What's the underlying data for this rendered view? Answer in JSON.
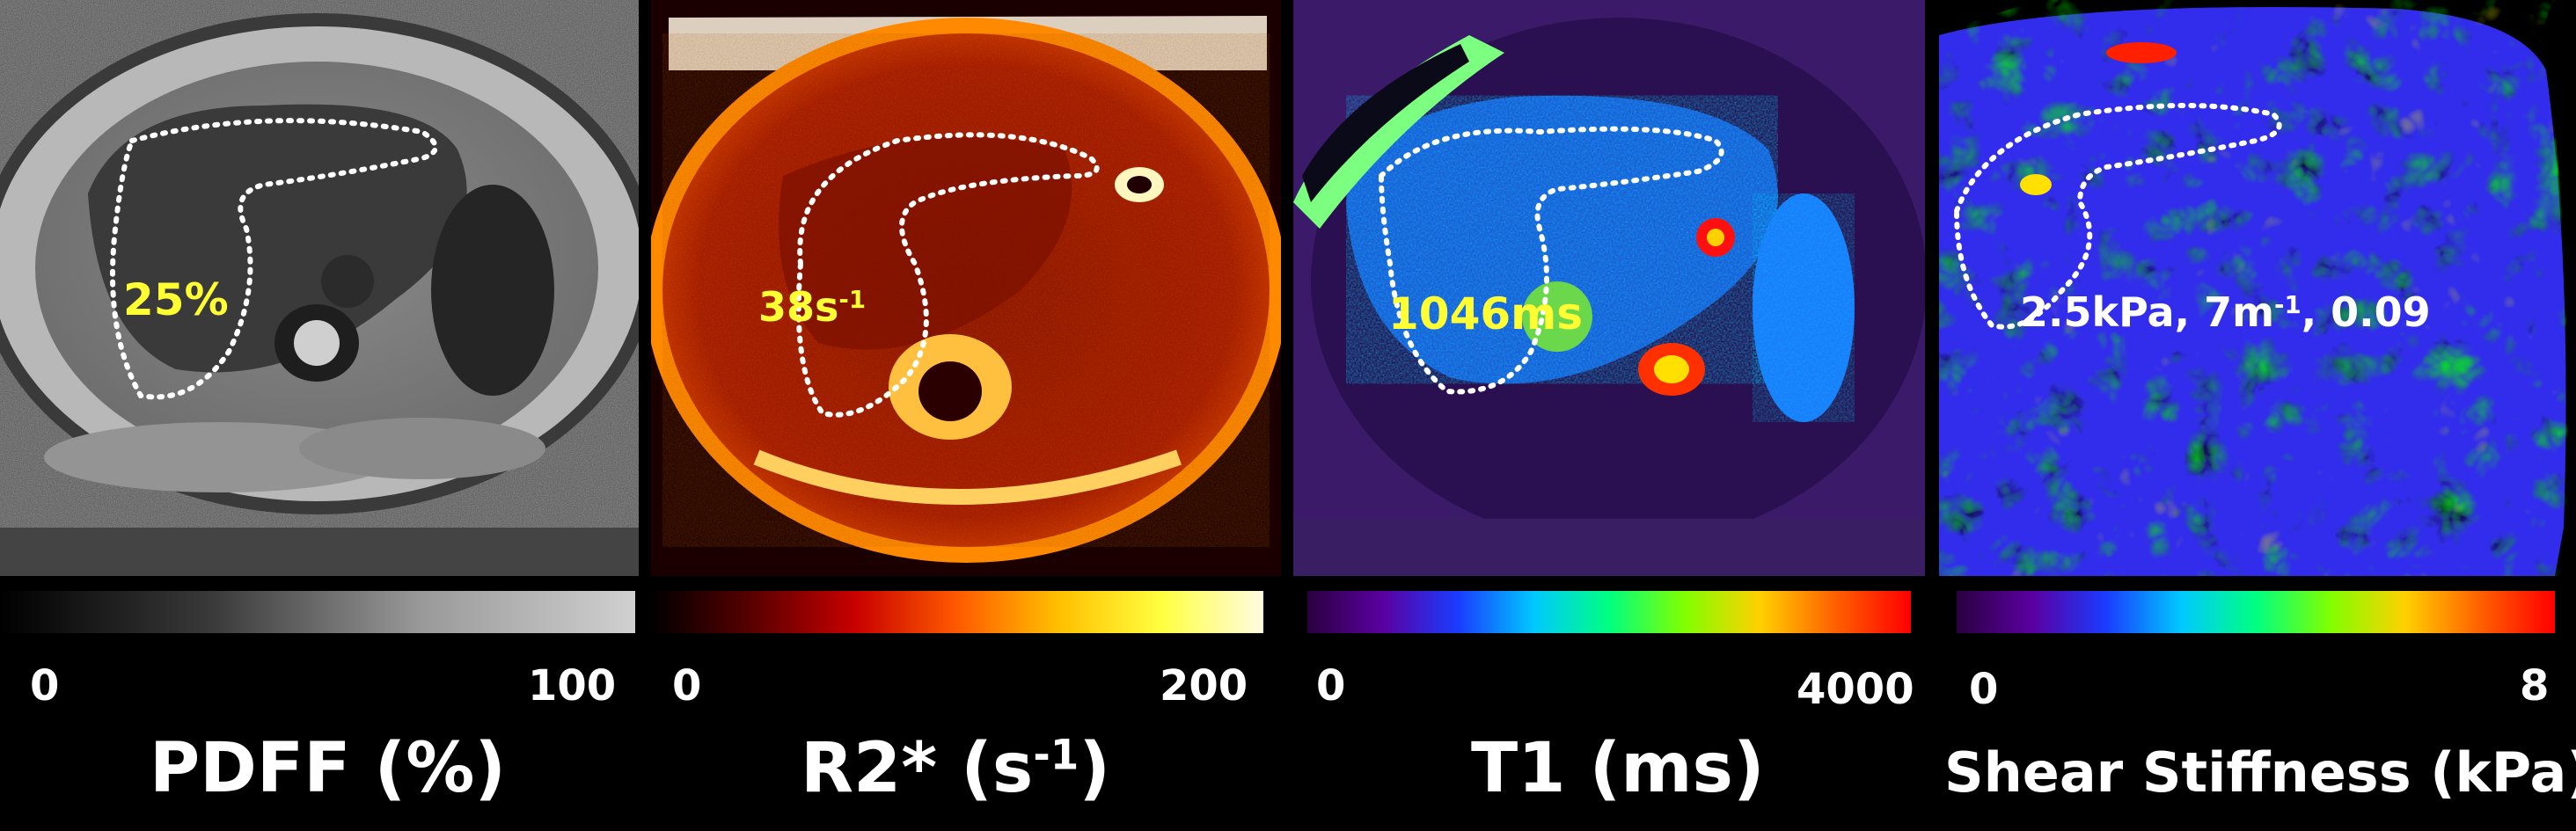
{
  "panels": [
    {
      "id": "pdff",
      "label_main": "PDFF (%)",
      "label_sup": "",
      "label_tail": "",
      "measure_main": "25%",
      "measure_sup": "",
      "measure_tail": "",
      "measure_color": "#ffff33",
      "scale_min": "0",
      "scale_max": "100",
      "colormap": [
        "#000000",
        "#3a3a3a",
        "#9a9a9a",
        "#d0d0d0"
      ]
    },
    {
      "id": "r2star",
      "label_main": "R2* (s",
      "label_sup": "-1",
      "label_tail": ")",
      "measure_main": "38s",
      "measure_sup": "-1",
      "measure_tail": "",
      "measure_color": "#ffff33",
      "scale_min": "0",
      "scale_max": "200",
      "colormap": [
        "#000000",
        "#5a0000",
        "#c80000",
        "#ff5a00",
        "#ffc000",
        "#ffff40",
        "#fffbe0"
      ]
    },
    {
      "id": "t1",
      "label_main": "T1 (ms)",
      "label_sup": "",
      "label_tail": "",
      "measure_main": "1046ms",
      "measure_sup": "",
      "measure_tail": "",
      "measure_color": "#ffff33",
      "scale_min": "0",
      "scale_max": "4000",
      "colormap": [
        "#2a0040",
        "#5a00a0",
        "#1a3cff",
        "#00c8ff",
        "#00ff80",
        "#80ff00",
        "#ffd000",
        "#ff6000",
        "#ff0000"
      ]
    },
    {
      "id": "stiffness",
      "label_main": "Shear Stiffness (kPa)",
      "label_sup": "",
      "label_tail": "",
      "measure_main": "2.5kPa, 7m",
      "measure_sup": "-1",
      "measure_tail": ", 0.09",
      "measure_color": "#ffffff",
      "scale_min": "0",
      "scale_max": "8",
      "colormap": [
        "#2a0040",
        "#5a00a0",
        "#1a3cff",
        "#00c8ff",
        "#00ff80",
        "#80ff00",
        "#ffd000",
        "#ff6000",
        "#ff0000"
      ]
    }
  ]
}
